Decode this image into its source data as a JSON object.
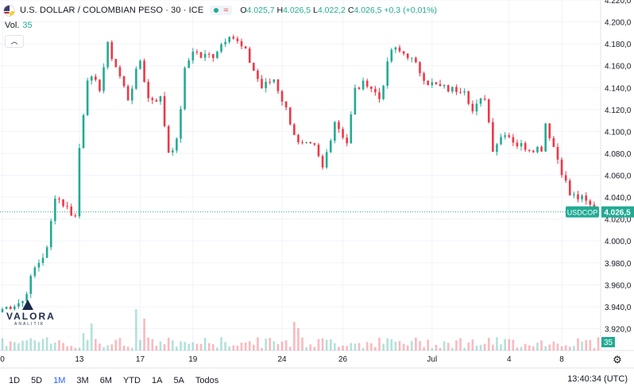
{
  "header": {
    "title": "U.S. DOLLAR / COLOMBIAN PESO · 30 · ICE",
    "ohlc": {
      "o_label": "O",
      "o": "4.025,7",
      "h_label": "H",
      "h": "4.026,5",
      "l_label": "L",
      "l": "4.022,2",
      "c_label": "C",
      "c": "4.026,5",
      "change": "+0,3 (+0,01%)"
    }
  },
  "volume": {
    "label": "Vol.",
    "value": "35"
  },
  "colors": {
    "up": "#22ab94",
    "down": "#f23645",
    "grid": "#f0f3fa",
    "price_badge": "#22ab94",
    "text": "#131722"
  },
  "price_label": {
    "symbol": "USDCOP",
    "value": "4.026,5"
  },
  "volume_badge": "35",
  "timeframes": [
    "1D",
    "5D",
    "1M",
    "3M",
    "6M",
    "YTD",
    "1A",
    "5A",
    "Todos"
  ],
  "active_timeframe": "1M",
  "clock": "13:40:34 (UTC)",
  "logo": {
    "name": "VALORA",
    "sub": "ANALITIK"
  },
  "chart_data": {
    "type": "candlestick",
    "title": "",
    "xlabel": "",
    "ylabel": "",
    "ylim": [
      3900,
      4220
    ],
    "y_ticks": [
      3920,
      3940,
      3960,
      3980,
      4000,
      4020,
      4040,
      4060,
      4080,
      4100,
      4120,
      4140,
      4160,
      4180,
      4200,
      4220
    ],
    "y_tick_labels": [
      "3.920,0",
      "3.940,0",
      "3.960,0",
      "3.980,0",
      "4.000,0",
      "4.020,0",
      "4.040,0",
      "4.060,0",
      "4.080,0",
      "4.100,0",
      "4.120,0",
      "4.140,0",
      "4.160,0",
      "4.180,0",
      "4.200,0",
      "4.220,0"
    ],
    "x_ticks": [
      {
        "label": "0",
        "i": 0
      },
      {
        "label": "13",
        "i": 19
      },
      {
        "label": "17",
        "i": 34
      },
      {
        "label": "19",
        "i": 47
      },
      {
        "label": "24",
        "i": 69
      },
      {
        "label": "26",
        "i": 84
      },
      {
        "label": "Jul",
        "i": 106
      },
      {
        "label": "4",
        "i": 125
      },
      {
        "label": "8",
        "i": 138
      }
    ],
    "last_price": 4026.5,
    "n_candles": 148,
    "path_points": [
      [
        0,
        3938
      ],
      [
        5,
        3945
      ],
      [
        8,
        3975
      ],
      [
        11,
        3992
      ],
      [
        13,
        4042
      ],
      [
        16,
        4030
      ],
      [
        18,
        4022
      ],
      [
        19,
        4085
      ],
      [
        21,
        4150
      ],
      [
        24,
        4140
      ],
      [
        26,
        4178
      ],
      [
        29,
        4150
      ],
      [
        31,
        4130
      ],
      [
        34,
        4165
      ],
      [
        36,
        4130
      ],
      [
        39,
        4130
      ],
      [
        41,
        4082
      ],
      [
        43,
        4090
      ],
      [
        45,
        4155
      ],
      [
        47,
        4175
      ],
      [
        49,
        4168
      ],
      [
        52,
        4170
      ],
      [
        56,
        4190
      ],
      [
        60,
        4172
      ],
      [
        64,
        4140
      ],
      [
        67,
        4148
      ],
      [
        70,
        4120
      ],
      [
        73,
        4088
      ],
      [
        77,
        4085
      ],
      [
        79,
        4066
      ],
      [
        82,
        4110
      ],
      [
        85,
        4090
      ],
      [
        87,
        4138
      ],
      [
        90,
        4145
      ],
      [
        93,
        4130
      ],
      [
        96,
        4175
      ],
      [
        100,
        4170
      ],
      [
        102,
        4160
      ],
      [
        105,
        4145
      ],
      [
        108,
        4140
      ],
      [
        111,
        4138
      ],
      [
        114,
        4140
      ],
      [
        116,
        4118
      ],
      [
        119,
        4132
      ],
      [
        121,
        4085
      ],
      [
        124,
        4100
      ],
      [
        127,
        4088
      ],
      [
        130,
        4085
      ],
      [
        133,
        4085
      ],
      [
        134,
        4108
      ],
      [
        137,
        4075
      ],
      [
        140,
        4042
      ],
      [
        143,
        4038
      ],
      [
        147,
        4026
      ]
    ],
    "volume_spikes": [
      {
        "i": 20,
        "v": 22
      },
      {
        "i": 22,
        "v": 34
      },
      {
        "i": 33,
        "v": 52
      },
      {
        "i": 35,
        "v": 40
      },
      {
        "i": 72,
        "v": 36
      },
      {
        "i": 73,
        "v": 28
      }
    ]
  }
}
